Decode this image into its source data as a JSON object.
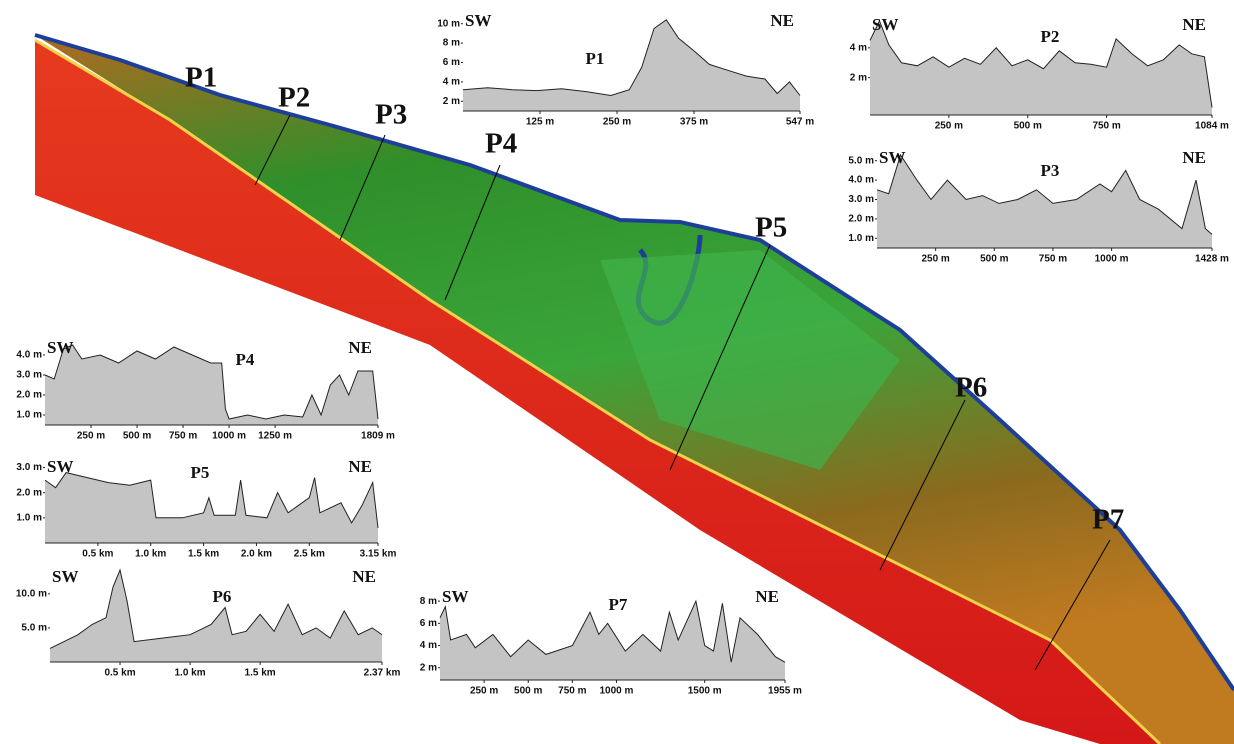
{
  "map": {
    "labels": [
      "P1",
      "P2",
      "P3",
      "P4",
      "P5",
      "P6",
      "P7"
    ]
  },
  "chart_data": [
    {
      "type": "area",
      "title": "P1",
      "start_label": "SW",
      "end_label": "NE",
      "color": "#c4c4c4",
      "x": [
        0,
        40,
        80,
        120,
        160,
        200,
        240,
        270,
        290,
        310,
        330,
        350,
        375,
        400,
        430,
        460,
        490,
        510,
        530,
        547
      ],
      "values": [
        3.2,
        3.4,
        3.2,
        3.1,
        3.3,
        3.0,
        2.6,
        3.2,
        5.5,
        9.5,
        10.4,
        8.5,
        7.2,
        5.8,
        5.2,
        4.6,
        4.3,
        2.8,
        4.0,
        2.6
      ],
      "xlim": [
        0,
        547
      ],
      "ylim": [
        1,
        11
      ],
      "xticks": [
        {
          "value": 125,
          "label": "125 m"
        },
        {
          "value": 250,
          "label": "250 m"
        },
        {
          "value": 375,
          "label": "375 m"
        },
        {
          "value": 547,
          "label": "547 m"
        }
      ],
      "yticks": [
        {
          "value": 2,
          "label": "2 m"
        },
        {
          "value": 4,
          "label": "4 m"
        },
        {
          "value": 6,
          "label": "6 m"
        },
        {
          "value": 8,
          "label": "8 m"
        },
        {
          "value": 10,
          "label": "10 m"
        }
      ]
    },
    {
      "type": "area",
      "title": "P2",
      "start_label": "SW",
      "end_label": "NE",
      "color": "#c4c4c4",
      "x": [
        0,
        30,
        60,
        100,
        150,
        200,
        250,
        300,
        350,
        400,
        450,
        500,
        550,
        600,
        650,
        700,
        750,
        780,
        830,
        880,
        930,
        980,
        1020,
        1060,
        1084
      ],
      "values": [
        4.5,
        5.8,
        4.2,
        3.0,
        2.8,
        3.4,
        2.7,
        3.3,
        2.9,
        4.0,
        2.8,
        3.2,
        2.6,
        3.8,
        3.0,
        2.9,
        2.7,
        4.6,
        3.6,
        2.8,
        3.2,
        4.2,
        3.6,
        3.4,
        0
      ],
      "xlim": [
        0,
        1084
      ],
      "ylim": [
        -0.5,
        6
      ],
      "xticks": [
        {
          "value": 250,
          "label": "250 m"
        },
        {
          "value": 500,
          "label": "500 m"
        },
        {
          "value": 750,
          "label": "750 m"
        },
        {
          "value": 1084,
          "label": "1084 m"
        }
      ],
      "yticks": [
        {
          "value": 2,
          "label": "2 m"
        },
        {
          "value": 4,
          "label": "4 m"
        }
      ]
    },
    {
      "type": "area",
      "title": "P3",
      "start_label": "SW",
      "end_label": "NE",
      "color": "#c4c4c4",
      "x": [
        0,
        50,
        100,
        170,
        230,
        300,
        380,
        450,
        520,
        600,
        680,
        750,
        850,
        950,
        1000,
        1060,
        1120,
        1200,
        1300,
        1360,
        1400,
        1428
      ],
      "values": [
        3.5,
        3.3,
        5.3,
        4.0,
        3.0,
        4.0,
        3.0,
        3.2,
        2.8,
        3.0,
        3.5,
        2.8,
        3.0,
        3.8,
        3.4,
        4.5,
        3.0,
        2.5,
        1.5,
        4.0,
        1.5,
        1.2
      ],
      "xlim": [
        0,
        1428
      ],
      "ylim": [
        0.5,
        5.5
      ],
      "xticks": [
        {
          "value": 250,
          "label": "250 m"
        },
        {
          "value": 500,
          "label": "500 m"
        },
        {
          "value": 750,
          "label": "750 m"
        },
        {
          "value": 1000,
          "label": "1000 m"
        },
        {
          "value": 1428,
          "label": "1428 m"
        }
      ],
      "yticks": [
        {
          "value": 1,
          "label": "1.0 m"
        },
        {
          "value": 2,
          "label": "2.0 m"
        },
        {
          "value": 3,
          "label": "3.0 m"
        },
        {
          "value": 4,
          "label": "4.0 m"
        },
        {
          "value": 5,
          "label": "5.0 m"
        }
      ]
    },
    {
      "type": "area",
      "title": "P4",
      "start_label": "SW",
      "end_label": "NE",
      "color": "#c4c4c4",
      "x": [
        0,
        50,
        100,
        150,
        200,
        300,
        400,
        500,
        600,
        700,
        800,
        900,
        960,
        980,
        1000,
        1100,
        1200,
        1300,
        1400,
        1450,
        1500,
        1550,
        1600,
        1650,
        1700,
        1780,
        1809
      ],
      "values": [
        3.0,
        2.8,
        4.3,
        4.5,
        3.8,
        4.0,
        3.6,
        4.2,
        3.8,
        4.4,
        4.0,
        3.6,
        3.6,
        1.3,
        0.8,
        1.0,
        0.8,
        1.0,
        0.9,
        2.0,
        1.0,
        2.5,
        3.0,
        2.0,
        3.2,
        3.2,
        0.8
      ],
      "xlim": [
        0,
        1809
      ],
      "ylim": [
        0.5,
        4.7
      ],
      "xticks": [
        {
          "value": 250,
          "label": "250 m"
        },
        {
          "value": 500,
          "label": "500 m"
        },
        {
          "value": 750,
          "label": "750 m"
        },
        {
          "value": 1000,
          "label": "1000 m"
        },
        {
          "value": 1250,
          "label": "1250 m"
        },
        {
          "value": 1809,
          "label": "1809 m"
        }
      ],
      "yticks": [
        {
          "value": 1,
          "label": "1.0 m"
        },
        {
          "value": 2,
          "label": "2.0 m"
        },
        {
          "value": 3,
          "label": "3.0 m"
        },
        {
          "value": 4,
          "label": "4.0 m"
        }
      ]
    },
    {
      "type": "area",
      "title": "P5",
      "start_label": "SW",
      "end_label": "NE",
      "color": "#c4c4c4",
      "x": [
        0,
        0.1,
        0.2,
        0.4,
        0.6,
        0.8,
        1.0,
        1.05,
        1.3,
        1.5,
        1.55,
        1.6,
        1.8,
        1.85,
        1.9,
        2.1,
        2.2,
        2.3,
        2.5,
        2.55,
        2.6,
        2.8,
        2.9,
        3.0,
        3.1,
        3.15
      ],
      "values": [
        2.5,
        2.2,
        2.8,
        2.6,
        2.4,
        2.3,
        2.5,
        1.0,
        1.0,
        1.2,
        1.8,
        1.1,
        1.1,
        2.5,
        1.1,
        1.0,
        2.0,
        1.2,
        1.8,
        2.6,
        1.2,
        1.6,
        0.8,
        1.5,
        2.4,
        0.6
      ],
      "xlim": [
        0,
        3.15
      ],
      "ylim": [
        0,
        3.3
      ],
      "xticks": [
        {
          "value": 0.5,
          "label": "0.5 km"
        },
        {
          "value": 1,
          "label": "1.0 km"
        },
        {
          "value": 1.5,
          "label": "1.5 km"
        },
        {
          "value": 2,
          "label": "2.0 km"
        },
        {
          "value": 2.5,
          "label": "2.5 km"
        },
        {
          "value": 3.15,
          "label": "3.15 km"
        }
      ],
      "yticks": [
        {
          "value": 1,
          "label": "1.0 m"
        },
        {
          "value": 2,
          "label": "2.0 m"
        },
        {
          "value": 3,
          "label": "3.0 m"
        }
      ]
    },
    {
      "type": "area",
      "title": "P6",
      "start_label": "SW",
      "end_label": "NE",
      "color": "#c4c4c4",
      "x": [
        0,
        0.1,
        0.2,
        0.3,
        0.4,
        0.45,
        0.5,
        0.55,
        0.6,
        0.8,
        1.0,
        1.15,
        1.25,
        1.3,
        1.4,
        1.5,
        1.6,
        1.7,
        1.8,
        1.9,
        2.0,
        2.1,
        2.2,
        2.3,
        2.37
      ],
      "values": [
        2.0,
        3.0,
        4.0,
        5.5,
        6.5,
        11,
        13.5,
        9,
        3,
        3.5,
        4.0,
        5.5,
        8.0,
        4.0,
        4.5,
        7.0,
        4.5,
        8.5,
        4.0,
        5.0,
        3.5,
        7.5,
        4.0,
        5.0,
        4.0
      ],
      "xlim": [
        0,
        2.37
      ],
      "ylim": [
        0,
        13.5
      ],
      "xticks": [
        {
          "value": 0.5,
          "label": "0.5 km"
        },
        {
          "value": 1,
          "label": "1.0 km"
        },
        {
          "value": 1.5,
          "label": "1.5 km"
        },
        {
          "value": 2.37,
          "label": "2.37 km"
        }
      ],
      "yticks": [
        {
          "value": 5,
          "label": "5.0 m"
        },
        {
          "value": 10,
          "label": "10.0 m"
        }
      ]
    },
    {
      "type": "area",
      "title": "P7",
      "start_label": "SW",
      "end_label": "NE",
      "color": "#c4c4c4",
      "x": [
        0,
        30,
        60,
        150,
        200,
        300,
        400,
        500,
        600,
        750,
        850,
        900,
        950,
        1050,
        1150,
        1250,
        1300,
        1350,
        1450,
        1500,
        1550,
        1600,
        1650,
        1700,
        1800,
        1900,
        1955
      ],
      "values": [
        6.5,
        7.5,
        4.5,
        5.0,
        3.8,
        5.0,
        3.0,
        4.5,
        3.2,
        4.0,
        7.0,
        5.0,
        6.0,
        3.5,
        5.0,
        3.5,
        7.0,
        4.5,
        8.0,
        4.0,
        3.5,
        7.8,
        2.5,
        6.5,
        5.0,
        3.0,
        2.5
      ],
      "xlim": [
        0,
        1955
      ],
      "ylim": [
        0.9,
        9
      ],
      "xticks": [
        {
          "value": 250,
          "label": "250 m"
        },
        {
          "value": 500,
          "label": "500 m"
        },
        {
          "value": 750,
          "label": "750 m"
        },
        {
          "value": 1000,
          "label": "1000 m"
        },
        {
          "value": 1500,
          "label": "1500 m"
        },
        {
          "value": 1955,
          "label": "1955 m"
        }
      ],
      "yticks": [
        {
          "value": 2,
          "label": "2 m"
        },
        {
          "value": 4,
          "label": "4 m"
        },
        {
          "value": 6,
          "label": "6 m"
        },
        {
          "value": 8,
          "label": "8 m"
        }
      ]
    }
  ]
}
